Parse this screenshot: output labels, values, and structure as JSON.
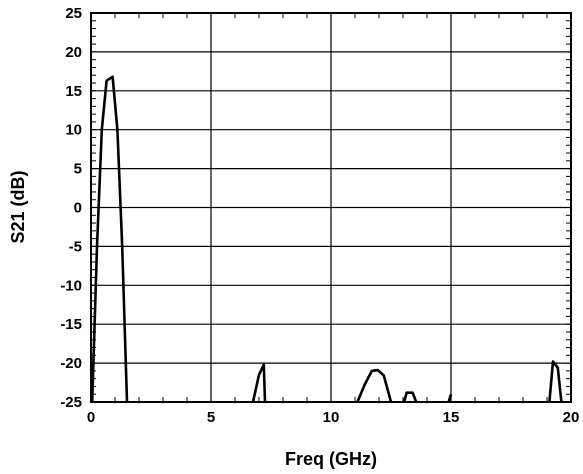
{
  "chart_data": {
    "type": "line",
    "title": "",
    "xlabel": "Freq (GHz)",
    "ylabel": "S21 (dB)",
    "xlim": [
      0,
      20
    ],
    "ylim": [
      -25,
      25
    ],
    "x_ticks": [
      "0",
      "5",
      "10",
      "15",
      "20"
    ],
    "y_ticks": [
      "25",
      "20",
      "15",
      "10",
      "5",
      "0",
      "-5",
      "-10",
      "-15",
      "-20",
      "-25"
    ],
    "grid": true,
    "legend": "none",
    "line_color": "#000000",
    "series": [
      {
        "segments": [
          [
            [
              0.05,
              -25
            ],
            [
              0.1,
              -20
            ],
            [
              0.25,
              -5
            ],
            [
              0.45,
              10
            ],
            [
              0.65,
              16.3
            ],
            [
              0.9,
              16.8
            ],
            [
              1.1,
              10
            ],
            [
              1.3,
              -5
            ],
            [
              1.5,
              -25
            ]
          ],
          [
            [
              6.75,
              -25
            ],
            [
              7.0,
              -21.5
            ],
            [
              7.2,
              -20.2
            ],
            [
              7.25,
              -25
            ]
          ],
          [
            [
              11.1,
              -25
            ],
            [
              11.4,
              -22.8
            ],
            [
              11.7,
              -21.0
            ],
            [
              11.95,
              -20.9
            ],
            [
              12.2,
              -21.6
            ],
            [
              12.5,
              -25
            ]
          ],
          [
            [
              13.05,
              -25
            ],
            [
              13.15,
              -23.8
            ],
            [
              13.4,
              -23.8
            ],
            [
              13.55,
              -25
            ]
          ],
          [
            [
              14.9,
              -25
            ],
            [
              15.0,
              -24.0
            ]
          ],
          [
            [
              19.1,
              -25
            ],
            [
              19.25,
              -19.8
            ],
            [
              19.45,
              -20.6
            ],
            [
              19.6,
              -25
            ]
          ]
        ]
      }
    ]
  }
}
